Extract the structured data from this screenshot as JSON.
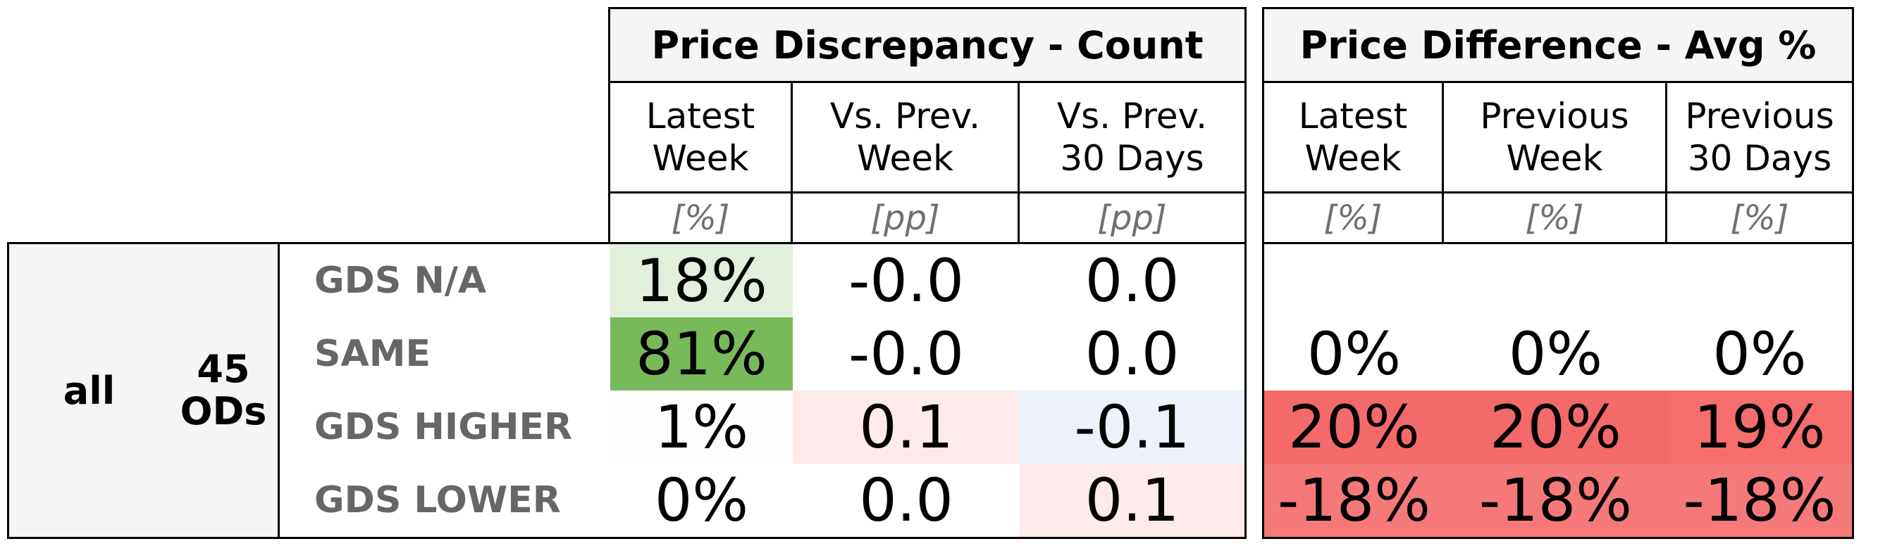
{
  "sections": {
    "count": {
      "title": "Price Discrepancy - Count",
      "columns": [
        {
          "header": "Latest\nWeek",
          "unit": "[%]"
        },
        {
          "header": "Vs. Prev.\nWeek",
          "unit": "[pp]"
        },
        {
          "header": "Vs. Prev.\n30 Days",
          "unit": "[pp]"
        }
      ]
    },
    "avg": {
      "title": "Price Difference - Avg %",
      "columns": [
        {
          "header": "Latest\nWeek",
          "unit": "[%]"
        },
        {
          "header": "Previous\nWeek",
          "unit": "[%]"
        },
        {
          "header": "Previous\n30 Days",
          "unit": "[%]"
        }
      ]
    }
  },
  "group": {
    "label": "all",
    "ods": "45\nODs"
  },
  "rows": [
    {
      "label": "GDS N/A",
      "count": [
        "18%",
        "-0.0",
        "0.0"
      ],
      "avg": [
        "",
        "",
        ""
      ],
      "count_colors": [
        "#e1efdc",
        "#ffffff",
        "#ffffff"
      ],
      "avg_colors": [
        "#ffffff",
        "#ffffff",
        "#ffffff"
      ]
    },
    {
      "label": "SAME",
      "count": [
        "81%",
        "-0.0",
        "0.0"
      ],
      "avg": [
        "0%",
        "0%",
        "0%"
      ],
      "count_colors": [
        "#78b95a",
        "#ffffff",
        "#ffffff"
      ],
      "avg_colors": [
        "#ffffff",
        "#ffffff",
        "#ffffff"
      ]
    },
    {
      "label": "GDS HIGHER",
      "count": [
        "1%",
        "0.1",
        "-0.1"
      ],
      "avg": [
        "20%",
        "20%",
        "19%"
      ],
      "count_colors": [
        "#fcfdfc",
        "#fdeaea",
        "#edf1f9"
      ],
      "avg_colors": [
        "#f46a6a",
        "#f46a6a",
        "#f56d6d"
      ]
    },
    {
      "label": "GDS LOWER",
      "count": [
        "0%",
        "0.0",
        "0.1"
      ],
      "avg": [
        "-18%",
        "-18%",
        "-18%"
      ],
      "count_colors": [
        "#ffffff",
        "#ffffff",
        "#fdeaea"
      ],
      "avg_colors": [
        "#f57979",
        "#f57979",
        "#f57979"
      ]
    }
  ]
}
